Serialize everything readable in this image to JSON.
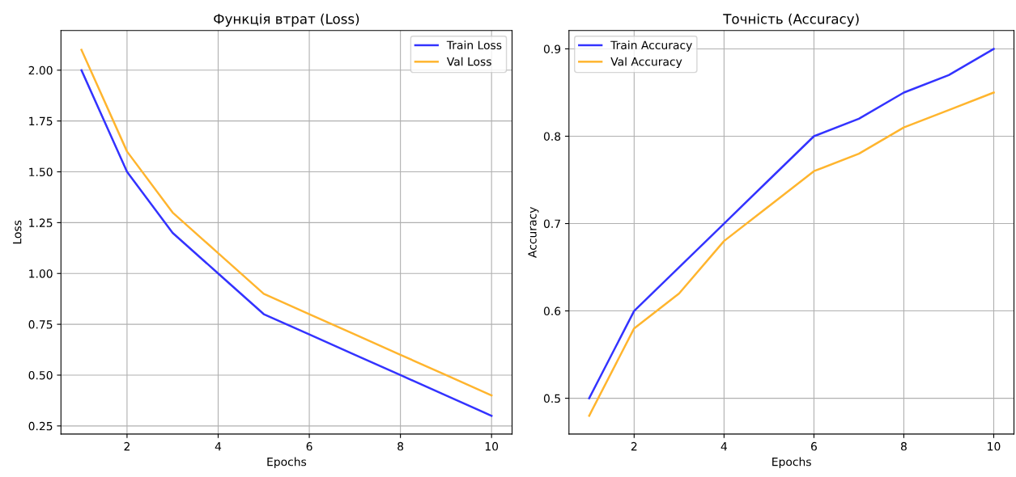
{
  "chart_data": [
    {
      "type": "line",
      "title": "Функція втрат (Loss)",
      "xlabel": "Epochs",
      "ylabel": "Loss",
      "x": [
        1,
        2,
        3,
        4,
        5,
        6,
        7,
        8,
        9,
        10
      ],
      "series": [
        {
          "name": "Train Loss",
          "color": "#3333ff",
          "values": [
            2.0,
            1.5,
            1.2,
            1.0,
            0.8,
            0.7,
            0.6,
            0.5,
            0.4,
            0.3
          ]
        },
        {
          "name": "Val Loss",
          "color": "#ffb52e",
          "values": [
            2.1,
            1.6,
            1.3,
            1.1,
            0.9,
            0.8,
            0.7,
            0.6,
            0.5,
            0.4
          ]
        }
      ],
      "xlim": [
        0.55,
        10.45
      ],
      "xticks": [
        2,
        4,
        6,
        8,
        10
      ],
      "ylim": [
        0.21,
        2.195
      ],
      "yticks": [
        {
          "value": 0.25,
          "label": "0.25"
        },
        {
          "value": 0.5,
          "label": "0.50"
        },
        {
          "value": 0.75,
          "label": "0.75"
        },
        {
          "value": 1.0,
          "label": "1.00"
        },
        {
          "value": 1.25,
          "label": "1.25"
        },
        {
          "value": 1.5,
          "label": "1.50"
        },
        {
          "value": 1.75,
          "label": "1.75"
        },
        {
          "value": 2.0,
          "label": "2.00"
        }
      ],
      "grid": true,
      "legend": "top right",
      "line_style": "solid",
      "marker": "none"
    },
    {
      "type": "line",
      "title": "Точність (Accuracy)",
      "xlabel": "Epochs",
      "ylabel": "Accuracy",
      "x": [
        1,
        2,
        3,
        4,
        5,
        6,
        7,
        8,
        9,
        10
      ],
      "series": [
        {
          "name": "Train Accuracy",
          "color": "#3333ff",
          "values": [
            0.5,
            0.6,
            0.65,
            0.7,
            0.75,
            0.8,
            0.82,
            0.85,
            0.87,
            0.9
          ]
        },
        {
          "name": "Val Accuracy",
          "color": "#ffb52e",
          "values": [
            0.48,
            0.58,
            0.62,
            0.68,
            0.72,
            0.76,
            0.78,
            0.81,
            0.83,
            0.85
          ]
        }
      ],
      "xlim": [
        0.55,
        10.45
      ],
      "xticks": [
        2,
        4,
        6,
        8,
        10
      ],
      "ylim": [
        0.459,
        0.921
      ],
      "yticks": [
        0.5,
        0.6,
        0.7,
        0.8,
        0.9
      ],
      "grid": true,
      "legend": "top left",
      "line_style": "solid",
      "marker": "none"
    }
  ]
}
